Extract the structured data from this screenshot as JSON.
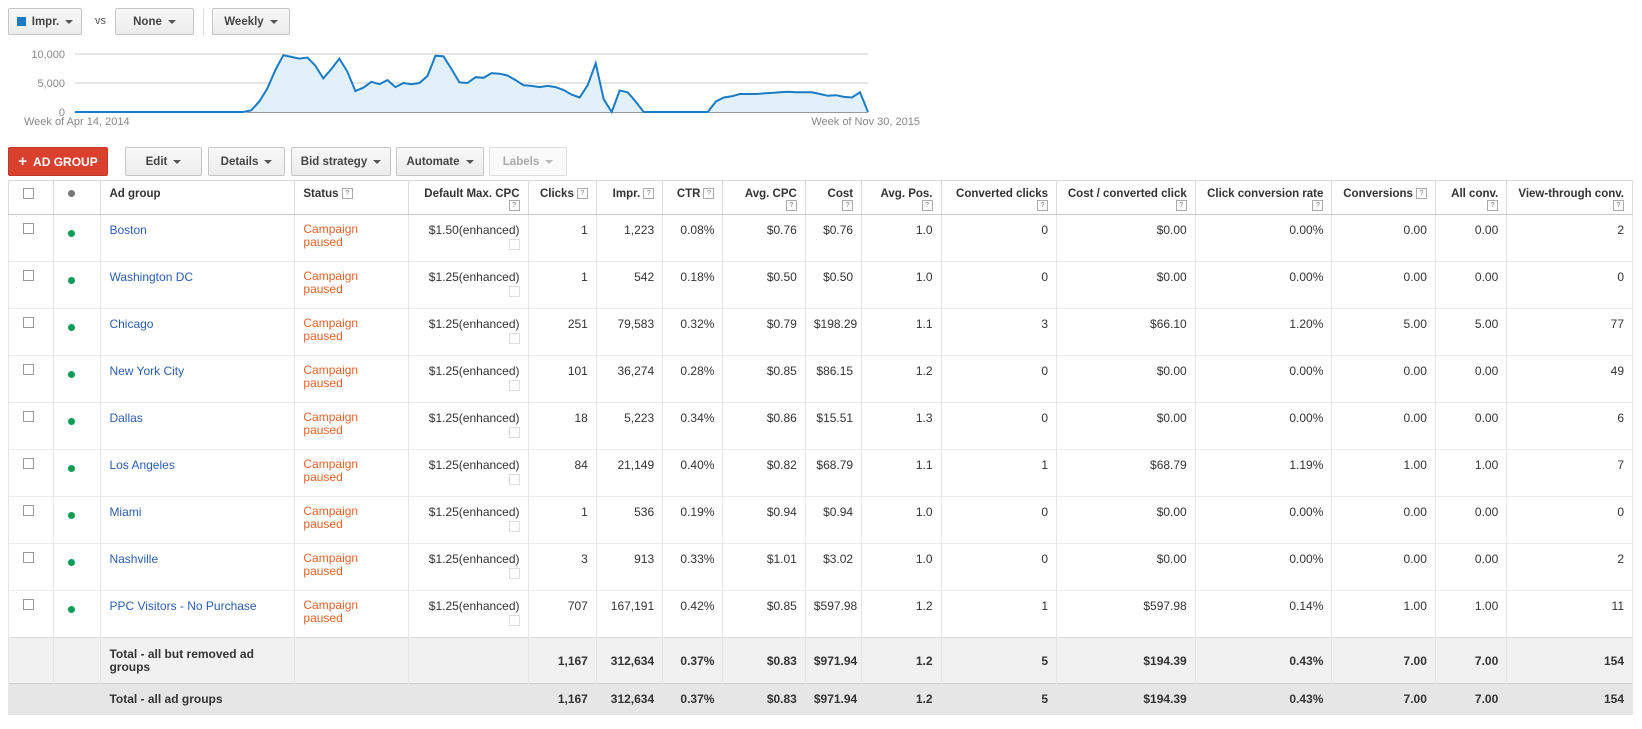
{
  "toolbar": {
    "metric1": {
      "label": "Impr.",
      "color": "#1a7cc4"
    },
    "vs": "vs",
    "metric2": "None",
    "period": "Weekly"
  },
  "chart_data": {
    "type": "area",
    "series": [
      {
        "name": "Impr.",
        "values": [
          0,
          0,
          0,
          0,
          0,
          0,
          0,
          0,
          0,
          0,
          0,
          0,
          0,
          0,
          0,
          0,
          0,
          0,
          0,
          0,
          0,
          0,
          300,
          1800,
          4000,
          7200,
          9800,
          9500,
          9200,
          9400,
          8000,
          5800,
          7400,
          9200,
          7000,
          3600,
          4200,
          5200,
          4800,
          5500,
          4300,
          5000,
          4800,
          5000,
          6200,
          9700,
          9600,
          7400,
          5100,
          5000,
          6000,
          5900,
          6700,
          6600,
          6300,
          5500,
          4600,
          4500,
          4300,
          4500,
          4300,
          3800,
          3000,
          2500,
          4600,
          8400,
          2200,
          0,
          3700,
          3400,
          1800,
          0,
          0,
          0,
          0,
          0,
          0,
          0,
          0,
          0,
          1800,
          2500,
          2700,
          3100,
          3100,
          3100,
          3200,
          3300,
          3400,
          3500,
          3400,
          3400,
          3400,
          3100,
          2800,
          2900,
          2600,
          2500,
          3400,
          0
        ]
      }
    ],
    "ylim": [
      0,
      10000
    ],
    "yticks": [
      "10,000",
      "5,000",
      "0"
    ],
    "xlabels": [
      "Week of Apr 14, 2014",
      "Week of Nov 30, 2015"
    ],
    "fill_color": "#e2f0f9",
    "line_color": "#1a7cc4"
  },
  "actions": {
    "add": "AD GROUP",
    "edit": "Edit",
    "details": "Details",
    "bid": "Bid strategy",
    "automate": "Automate",
    "labels": "Labels"
  },
  "table": {
    "headers": {
      "adgroup": "Ad group",
      "status": "Status",
      "cpc": "Default Max. CPC",
      "clicks": "Clicks",
      "impr": "Impr.",
      "ctr": "CTR",
      "avgcpc": "Avg. CPC",
      "cost": "Cost",
      "avgpos": "Avg. Pos.",
      "convclicks": "Converted clicks",
      "costconv": "Cost / converted click",
      "convrate": "Click conversion rate",
      "conversions": "Conversions",
      "allconv": "All conv.",
      "vtc": "View-through conv."
    },
    "help_glyph": "?",
    "rows": [
      {
        "name": "Boston",
        "status1": "Campaign",
        "status2": "paused",
        "cpc": "$1.50(enhanced)",
        "clicks": "1",
        "impr": "1,223",
        "ctr": "0.08%",
        "avgcpc": "$0.76",
        "cost": "$0.76",
        "avgpos": "1.0",
        "convclicks": "0",
        "costconv": "$0.00",
        "convrate": "0.00%",
        "conversions": "0.00",
        "allconv": "0.00",
        "vtc": "2"
      },
      {
        "name": "Washington DC",
        "status1": "Campaign",
        "status2": "paused",
        "cpc": "$1.25(enhanced)",
        "clicks": "1",
        "impr": "542",
        "ctr": "0.18%",
        "avgcpc": "$0.50",
        "cost": "$0.50",
        "avgpos": "1.0",
        "convclicks": "0",
        "costconv": "$0.00",
        "convrate": "0.00%",
        "conversions": "0.00",
        "allconv": "0.00",
        "vtc": "0"
      },
      {
        "name": "Chicago",
        "status1": "Campaign",
        "status2": "paused",
        "cpc": "$1.25(enhanced)",
        "clicks": "251",
        "impr": "79,583",
        "ctr": "0.32%",
        "avgcpc": "$0.79",
        "cost": "$198.29",
        "avgpos": "1.1",
        "convclicks": "3",
        "costconv": "$66.10",
        "convrate": "1.20%",
        "conversions": "5.00",
        "allconv": "5.00",
        "vtc": "77"
      },
      {
        "name": "New York City",
        "status1": "Campaign",
        "status2": "paused",
        "cpc": "$1.25(enhanced)",
        "clicks": "101",
        "impr": "36,274",
        "ctr": "0.28%",
        "avgcpc": "$0.85",
        "cost": "$86.15",
        "avgpos": "1.2",
        "convclicks": "0",
        "costconv": "$0.00",
        "convrate": "0.00%",
        "conversions": "0.00",
        "allconv": "0.00",
        "vtc": "49"
      },
      {
        "name": "Dallas",
        "status1": "Campaign",
        "status2": "paused",
        "cpc": "$1.25(enhanced)",
        "clicks": "18",
        "impr": "5,223",
        "ctr": "0.34%",
        "avgcpc": "$0.86",
        "cost": "$15.51",
        "avgpos": "1.3",
        "convclicks": "0",
        "costconv": "$0.00",
        "convrate": "0.00%",
        "conversions": "0.00",
        "allconv": "0.00",
        "vtc": "6"
      },
      {
        "name": "Los Angeles",
        "status1": "Campaign",
        "status2": "paused",
        "cpc": "$1.25(enhanced)",
        "clicks": "84",
        "impr": "21,149",
        "ctr": "0.40%",
        "avgcpc": "$0.82",
        "cost": "$68.79",
        "avgpos": "1.1",
        "convclicks": "1",
        "costconv": "$68.79",
        "convrate": "1.19%",
        "conversions": "1.00",
        "allconv": "1.00",
        "vtc": "7"
      },
      {
        "name": "Miami",
        "status1": "Campaign",
        "status2": "paused",
        "cpc": "$1.25(enhanced)",
        "clicks": "1",
        "impr": "536",
        "ctr": "0.19%",
        "avgcpc": "$0.94",
        "cost": "$0.94",
        "avgpos": "1.0",
        "convclicks": "0",
        "costconv": "$0.00",
        "convrate": "0.00%",
        "conversions": "0.00",
        "allconv": "0.00",
        "vtc": "0"
      },
      {
        "name": "Nashville",
        "status1": "Campaign",
        "status2": "paused",
        "cpc": "$1.25(enhanced)",
        "clicks": "3",
        "impr": "913",
        "ctr": "0.33%",
        "avgcpc": "$1.01",
        "cost": "$3.02",
        "avgpos": "1.0",
        "convclicks": "0",
        "costconv": "$0.00",
        "convrate": "0.00%",
        "conversions": "0.00",
        "allconv": "0.00",
        "vtc": "2"
      },
      {
        "name": "PPC Visitors - No Purchase",
        "status1": "Campaign",
        "status2": "paused",
        "cpc": "$1.25(enhanced)",
        "clicks": "707",
        "impr": "167,191",
        "ctr": "0.42%",
        "avgcpc": "$0.85",
        "cost": "$597.98",
        "avgpos": "1.2",
        "convclicks": "1",
        "costconv": "$597.98",
        "convrate": "0.14%",
        "conversions": "1.00",
        "allconv": "1.00",
        "vtc": "11"
      }
    ],
    "totals": [
      {
        "label": "Total - all but removed ad groups",
        "clicks": "1,167",
        "impr": "312,634",
        "ctr": "0.37%",
        "avgcpc": "$0.83",
        "cost": "$971.94",
        "avgpos": "1.2",
        "convclicks": "5",
        "costconv": "$194.39",
        "convrate": "0.43%",
        "conversions": "7.00",
        "allconv": "7.00",
        "vtc": "154"
      },
      {
        "label": "Total - all ad groups",
        "clicks": "1,167",
        "impr": "312,634",
        "ctr": "0.37%",
        "avgcpc": "$0.83",
        "cost": "$971.94",
        "avgpos": "1.2",
        "convclicks": "5",
        "costconv": "$194.39",
        "convrate": "0.43%",
        "conversions": "7.00",
        "allconv": "7.00",
        "vtc": "154"
      }
    ]
  }
}
